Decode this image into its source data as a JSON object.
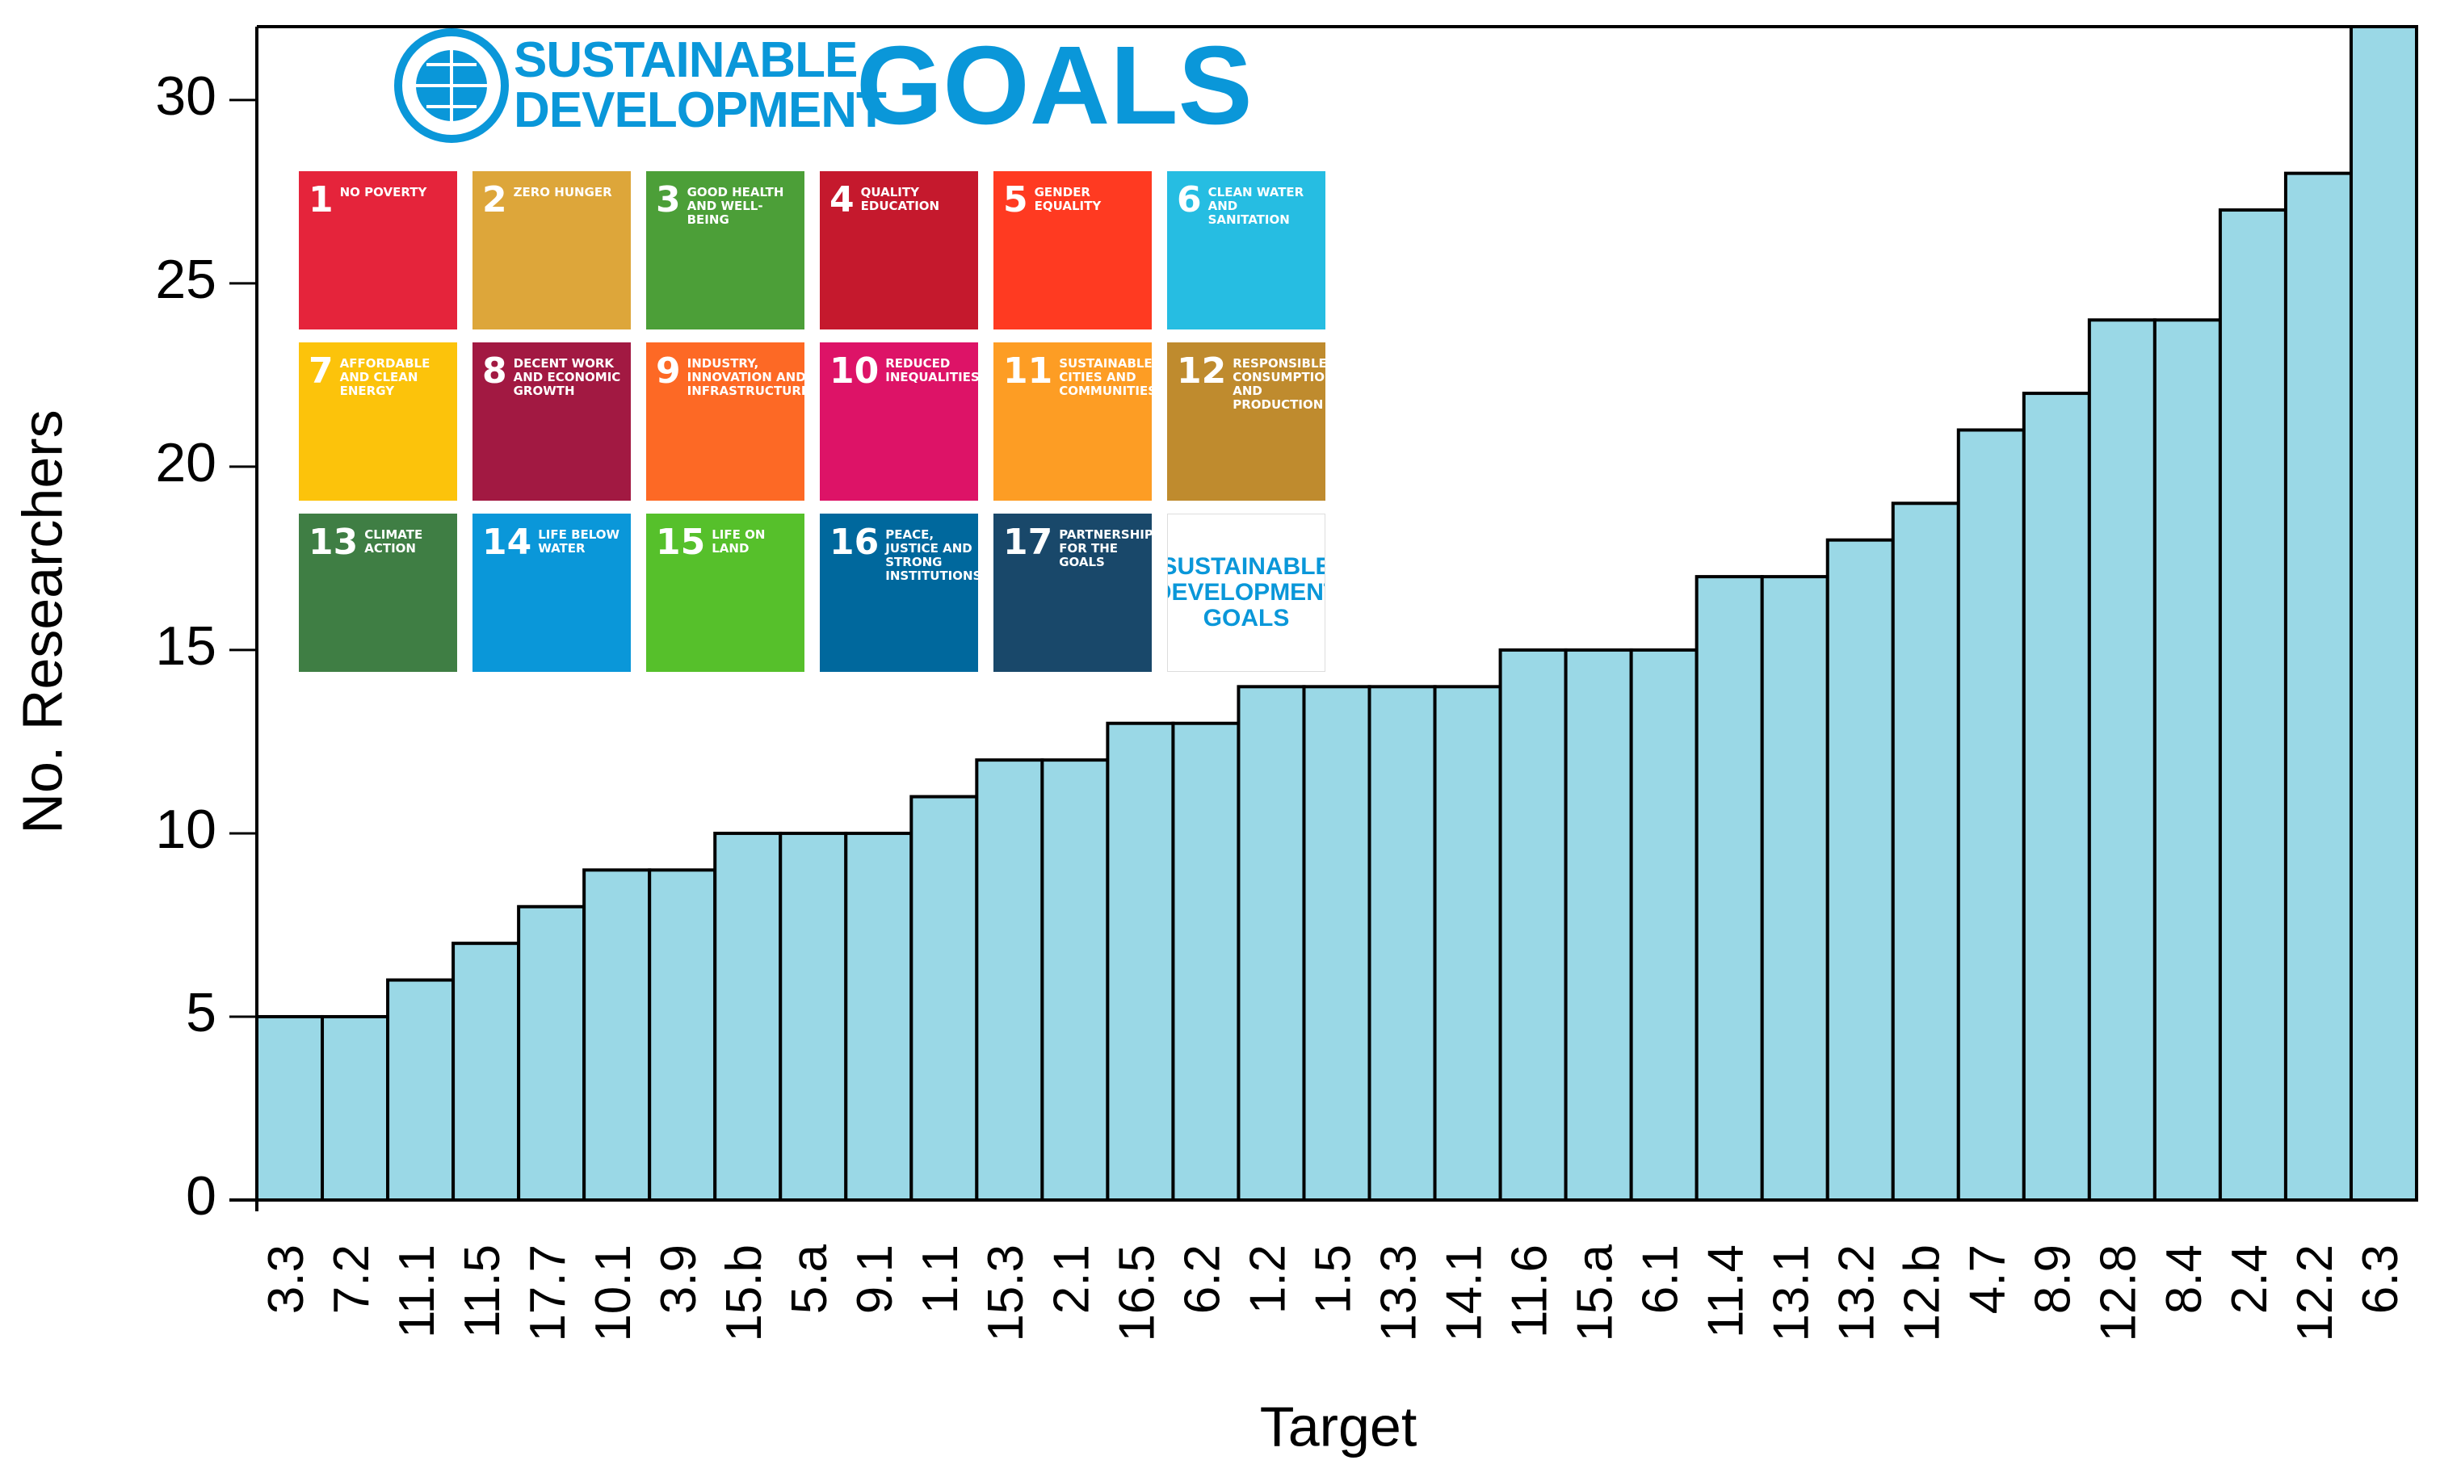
{
  "chart_data": {
    "type": "bar",
    "categories": [
      "3.3",
      "7.2",
      "11.1",
      "11.5",
      "17.7",
      "10.1",
      "3.9",
      "15.b",
      "5.a",
      "9.1",
      "1.1",
      "15.3",
      "2.1",
      "16.5",
      "6.2",
      "1.2",
      "1.5",
      "13.3",
      "14.1",
      "11.6",
      "15.a",
      "6.1",
      "11.4",
      "13.1",
      "13.2",
      "12.b",
      "4.7",
      "8.9",
      "12.8",
      "8.4",
      "2.4",
      "12.2",
      "6.3"
    ],
    "values": [
      5,
      5,
      6,
      7,
      8,
      9,
      9,
      10,
      10,
      10,
      11,
      12,
      12,
      13,
      13,
      14,
      14,
      14,
      14,
      15,
      15,
      15,
      17,
      17,
      18,
      19,
      21,
      22,
      24,
      24,
      27,
      28,
      32
    ],
    "color": "#9ad8e6",
    "xlabel": "Target",
    "ylabel": "No. Researchers",
    "ylim": [
      0,
      32
    ],
    "yticks": [
      0,
      5,
      10,
      15,
      20,
      25,
      30
    ],
    "grid": false,
    "sdg_panel": {
      "logo_line1": "SUSTAINABLE",
      "logo_line2": "DEVELOPMENT",
      "logo_word": "GOALS",
      "tiles": [
        {
          "number": 1,
          "label": "NO POVERTY",
          "color": "#e5243b"
        },
        {
          "number": 2,
          "label": "ZERO HUNGER",
          "color": "#dda63a"
        },
        {
          "number": 3,
          "label": "GOOD HEALTH AND WELL-BEING",
          "color": "#4c9f38"
        },
        {
          "number": 4,
          "label": "QUALITY EDUCATION",
          "color": "#c5192d"
        },
        {
          "number": 5,
          "label": "GENDER EQUALITY",
          "color": "#ff3a21"
        },
        {
          "number": 6,
          "label": "CLEAN WATER AND SANITATION",
          "color": "#26bde2"
        },
        {
          "number": 7,
          "label": "AFFORDABLE AND CLEAN ENERGY",
          "color": "#fcc30b"
        },
        {
          "number": 8,
          "label": "DECENT WORK AND ECONOMIC GROWTH",
          "color": "#a21942"
        },
        {
          "number": 9,
          "label": "INDUSTRY, INNOVATION AND INFRASTRUCTURE",
          "color": "#fd6925"
        },
        {
          "number": 10,
          "label": "REDUCED INEQUALITIES",
          "color": "#dd1367"
        },
        {
          "number": 11,
          "label": "SUSTAINABLE CITIES AND COMMUNITIES",
          "color": "#fd9d24"
        },
        {
          "number": 12,
          "label": "RESPONSIBLE CONSUMPTION AND PRODUCTION",
          "color": "#bf8b2e"
        },
        {
          "number": 13,
          "label": "CLIMATE ACTION",
          "color": "#3f7e44"
        },
        {
          "number": 14,
          "label": "LIFE BELOW WATER",
          "color": "#0a97d9"
        },
        {
          "number": 15,
          "label": "LIFE ON LAND",
          "color": "#56c02b"
        },
        {
          "number": 16,
          "label": "PEACE, JUSTICE AND STRONG INSTITUTIONS",
          "color": "#00689d"
        },
        {
          "number": 17,
          "label": "PARTNERSHIPS FOR THE GOALS",
          "color": "#19486a"
        }
      ],
      "tile_logo": "SUSTAINABLE DEVELOPMENT GOALS"
    }
  }
}
